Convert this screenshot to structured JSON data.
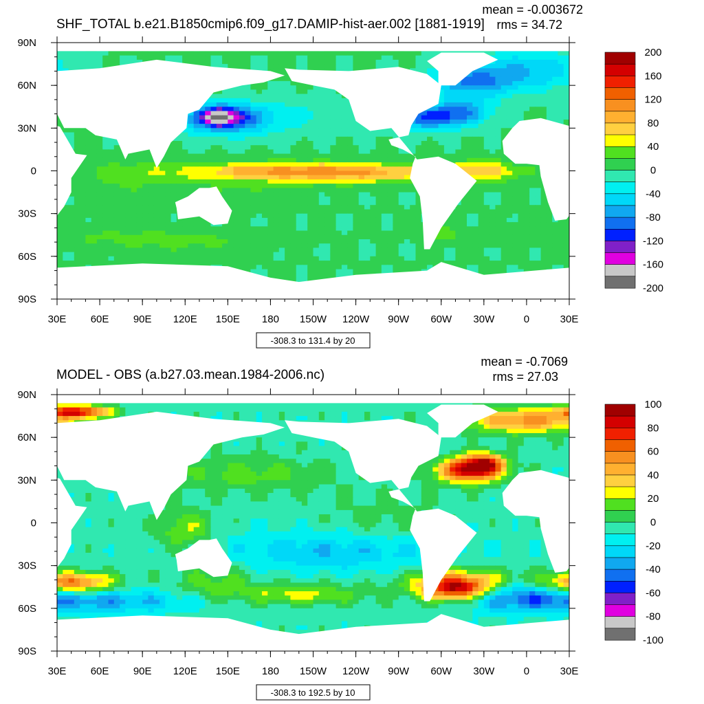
{
  "charts": [
    {
      "title": "SHF_TOTAL b.e21.B1850cmip6.f09_g17.DAMIP-hist-aer.002 [1881-1919]",
      "mean_text": "mean = -0.003672",
      "rms_text": "rms = 34.72",
      "range_text": "-308.3 to 131.4 by 20"
    },
    {
      "title": "MODEL - OBS (a.b27.03.mean.1984-2006.nc)",
      "mean_text": "mean = -0.7069",
      "rms_text": "rms = 27.03",
      "range_text": "-308.3 to 192.5 by 10"
    }
  ],
  "chart_data": [
    {
      "type": "heatmap",
      "title": "SHF_TOTAL b.e21.B1850cmip6.f09_g17.DAMIP-hist-aer.002 [1881-1919]",
      "mean": -0.003672,
      "rms": 34.72,
      "contour_range": "-308.3 to 131.4 by 20",
      "x_ticks": [
        "30E",
        "60E",
        "90E",
        "120E",
        "150E",
        "180",
        "150W",
        "120W",
        "90W",
        "60W",
        "30W",
        "0",
        "30E"
      ],
      "y_ticks": [
        "90N",
        "60N",
        "30N",
        "0",
        "30S",
        "60S",
        "90S"
      ],
      "colorbar_labels": [
        "200",
        "160",
        "120",
        "80",
        "40",
        "0",
        "-40",
        "-80",
        "-120",
        "-160",
        "-200"
      ],
      "colorbar_colors": [
        "#a00000",
        "#d40000",
        "#f02000",
        "#f06000",
        "#f89020",
        "#ffb030",
        "#ffd040",
        "#ffff00",
        "#50e020",
        "#30d050",
        "#30e8b0",
        "#00f0f0",
        "#00d8f8",
        "#10a8f0",
        "#1070f0",
        "#0020ff",
        "#8020c8",
        "#e000e0",
        "#c8c8c8",
        "#707070"
      ],
      "colorbar_range": [
        -200,
        200
      ]
    },
    {
      "type": "heatmap",
      "title": "MODEL - OBS (a.b27.03.mean.1984-2006.nc)",
      "mean": -0.7069,
      "rms": 27.03,
      "contour_range": "-308.3 to 192.5 by 10",
      "x_ticks": [
        "30E",
        "60E",
        "90E",
        "120E",
        "150E",
        "180",
        "150W",
        "120W",
        "90W",
        "60W",
        "30W",
        "0",
        "30E"
      ],
      "y_ticks": [
        "90N",
        "60N",
        "30N",
        "0",
        "30S",
        "60S",
        "90S"
      ],
      "colorbar_labels": [
        "100",
        "80",
        "60",
        "40",
        "20",
        "0",
        "-20",
        "-40",
        "-60",
        "-80",
        "-100"
      ],
      "colorbar_colors": [
        "#a00000",
        "#d40000",
        "#f02000",
        "#f06000",
        "#f89020",
        "#ffb030",
        "#ffd040",
        "#ffff00",
        "#50e020",
        "#30d050",
        "#30e8b0",
        "#00f0f0",
        "#00d8f8",
        "#10a8f0",
        "#1070f0",
        "#0020ff",
        "#8020c8",
        "#e000e0",
        "#c8c8c8",
        "#707070"
      ],
      "colorbar_range": [
        -100,
        100
      ]
    }
  ]
}
